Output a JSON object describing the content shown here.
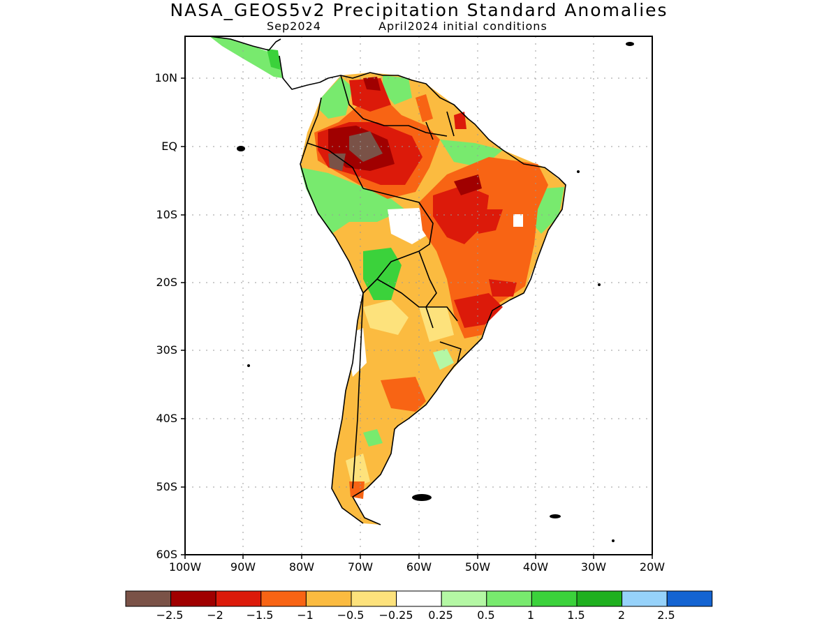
{
  "title": "NASA_GEOS5v2 Precipitation Standard Anomalies",
  "subtitle_left": "Sep2024",
  "subtitle_right": "April2024 initial conditions",
  "lat_ticks": [
    "10N",
    "EQ",
    "10S",
    "20S",
    "30S",
    "40S",
    "50S",
    "60S"
  ],
  "lon_ticks": [
    "100W",
    "90W",
    "80W",
    "70W",
    "60W",
    "50W",
    "40W",
    "30W",
    "20W"
  ],
  "colorbar": {
    "colors": [
      "#7a5247",
      "#a00000",
      "#dc1a0a",
      "#f86414",
      "#fbbb40",
      "#fde27c",
      "#ffffff",
      "#b4f7a4",
      "#78ea6e",
      "#3bd23b",
      "#1fb01f",
      "#96d2fa",
      "#1464d2"
    ],
    "labels": [
      "−2.5",
      "−2",
      "−1.5",
      "−1",
      "−0.5",
      "−0.25",
      "0.25",
      "0.5",
      "1",
      "1.5",
      "2",
      "2.5"
    ]
  }
}
